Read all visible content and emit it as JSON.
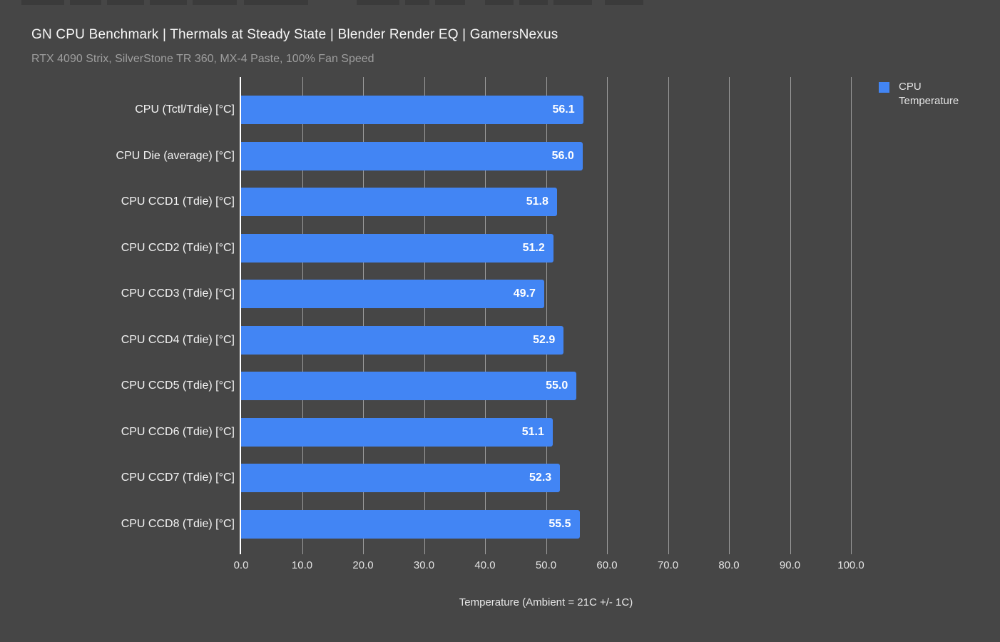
{
  "page": {
    "background_color": "#464646"
  },
  "header": {
    "title": "GN CPU Benchmark | Thermals at Steady State | Blender Render EQ | GamersNexus",
    "subtitle": "RTX 4090 Strix, SilverStone TR 360, MX-4 Paste, 100% Fan Speed"
  },
  "legend": {
    "label": "CPU Temperature",
    "swatch_color": "#4285f4"
  },
  "chart_data": {
    "type": "bar",
    "orientation": "horizontal",
    "title": "GN CPU Benchmark | Thermals at Steady State | Blender Render EQ | GamersNexus",
    "subtitle": "RTX 4090 Strix, SilverStone TR 360, MX-4 Paste, 100% Fan Speed",
    "series_name": "CPU Temperature",
    "categories": [
      "CPU (Tctl/Tdie) [°C]",
      "CPU Die (average) [°C]",
      "CPU CCD1 (Tdie) [°C]",
      "CPU CCD2 (Tdie) [°C]",
      "CPU CCD3 (Tdie) [°C]",
      "CPU CCD4 (Tdie) [°C]",
      "CPU CCD5 (Tdie) [°C]",
      "CPU CCD6 (Tdie) [°C]",
      "CPU CCD7 (Tdie) [°C]",
      "CPU CCD8 (Tdie) [°C]"
    ],
    "values": [
      56.1,
      56.0,
      51.8,
      51.2,
      49.7,
      52.9,
      55.0,
      51.1,
      52.3,
      55.5
    ],
    "xlabel": "Temperature (Ambient = 21C +/- 1C)",
    "xlim": [
      0,
      100
    ],
    "xticks": [
      0,
      10,
      20,
      30,
      40,
      50,
      60,
      70,
      80,
      90,
      100
    ],
    "xtick_labels": [
      "0.0",
      "10.0",
      "20.0",
      "30.0",
      "40.0",
      "50.0",
      "60.0",
      "70.0",
      "80.0",
      "90.0",
      "100.0"
    ],
    "value_labels_shown": true,
    "grid": true,
    "bar_color": "#4285f4",
    "grid_color": "#9d9d9d",
    "baseline_color": "#ffffff",
    "legend_position": "top-right"
  }
}
